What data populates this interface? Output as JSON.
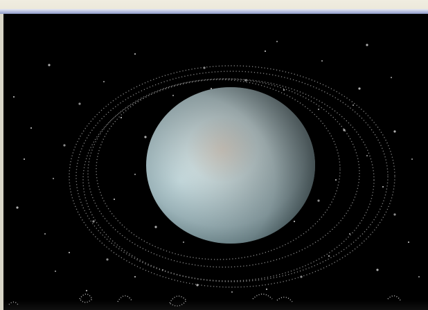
{
  "scene": {
    "subject": "planet-with-rings",
    "background_color": "#000000",
    "planet_color": "#b9d3d8",
    "ring_color": "#9a9a9a"
  }
}
